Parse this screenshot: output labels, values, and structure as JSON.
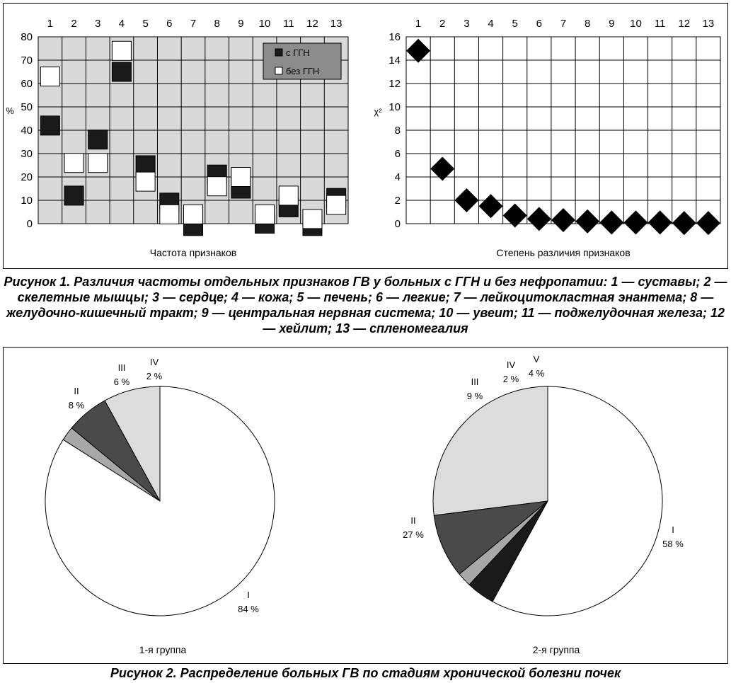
{
  "figure1": {
    "caption": "Рисунок 1. Различия частоты отдельных признаков ГВ у больных с ГГН и без нефропатии: 1 — суставы; 2 — скелетные мышцы; 3 — сердце; 4 — кожа; 5 — печень; 6 — легкие; 7 — лейкоцитокластная энантема; 8 — желудочно-кишечный тракт; 9 — центральная нервная система; 10 — увеит; 11 — поджелудочная железа; 12 — хейлит; 13 — спленомегалия"
  },
  "figure2": {
    "caption": "Рисунок 2. Распределение больных ГВ по стадиям хронической болезни почек"
  },
  "colors": {
    "plot_bg": "#d9d9d9",
    "with_ggn": "#1a1a1a",
    "without_ggn": "#ffffff",
    "diamond": "#000000",
    "stage_I": "#ffffff",
    "stage_II": "#dcdcdc",
    "stage_III": "#4a4a4a",
    "stage_IV": "#a8a8a8",
    "stage_V": "#1a1a1a"
  },
  "chart_data": [
    {
      "type": "scatter",
      "title": "Частота признаков",
      "xlabel": "",
      "ylabel": "%",
      "categories": [
        "1",
        "2",
        "3",
        "4",
        "5",
        "6",
        "7",
        "8",
        "9",
        "10",
        "11",
        "12",
        "13"
      ],
      "ylim": [
        0,
        80
      ],
      "yticks": [
        0,
        10,
        20,
        30,
        40,
        50,
        60,
        70,
        80
      ],
      "grid": true,
      "legend_position": "top-right",
      "marker": "square",
      "series": [
        {
          "name": "с ГГН",
          "values": [
            42,
            12,
            36,
            65,
            25,
            9,
            -1,
            21,
            15,
            0,
            7,
            -1,
            11
          ]
        },
        {
          "name": "без ГГН",
          "values": [
            63,
            26,
            26,
            74,
            18,
            4,
            4,
            16,
            20,
            4,
            12,
            2,
            8
          ]
        }
      ]
    },
    {
      "type": "scatter",
      "title": "Степень различия признаков",
      "xlabel": "",
      "ylabel": "χ²",
      "categories": [
        "1",
        "2",
        "3",
        "4",
        "5",
        "6",
        "7",
        "8",
        "9",
        "10",
        "11",
        "12",
        "13"
      ],
      "ylim": [
        0,
        16
      ],
      "yticks": [
        0,
        2,
        4,
        6,
        8,
        10,
        12,
        14,
        16
      ],
      "grid": true,
      "marker": "diamond",
      "series": [
        {
          "values": [
            14.8,
            4.7,
            2.0,
            1.5,
            0.7,
            0.4,
            0.3,
            0.2,
            0.1,
            0.1,
            0.1,
            0.05,
            0.05
          ]
        }
      ]
    },
    {
      "type": "pie",
      "title": "1-я группа",
      "slices": [
        {
          "label": "I",
          "value": 84,
          "value_label": "84 %",
          "color": "#ffffff"
        },
        {
          "label": "II",
          "value": 8,
          "value_label": "8 %",
          "color": "#dcdcdc"
        },
        {
          "label": "III",
          "value": 6,
          "value_label": "6 %",
          "color": "#4a4a4a"
        },
        {
          "label": "IV",
          "value": 2,
          "value_label": "2 %",
          "color": "#a8a8a8"
        }
      ]
    },
    {
      "type": "pie",
      "title": "2-я группа",
      "slices": [
        {
          "label": "I",
          "value": 58,
          "value_label": "58 %",
          "color": "#ffffff"
        },
        {
          "label": "II",
          "value": 27,
          "value_label": "27 %",
          "color": "#dcdcdc"
        },
        {
          "label": "III",
          "value": 9,
          "value_label": "9 %",
          "color": "#4a4a4a"
        },
        {
          "label": "IV",
          "value": 2,
          "value_label": "2 %",
          "color": "#a8a8a8"
        },
        {
          "label": "V",
          "value": 4,
          "value_label": "4 %",
          "color": "#1a1a1a"
        }
      ]
    }
  ]
}
